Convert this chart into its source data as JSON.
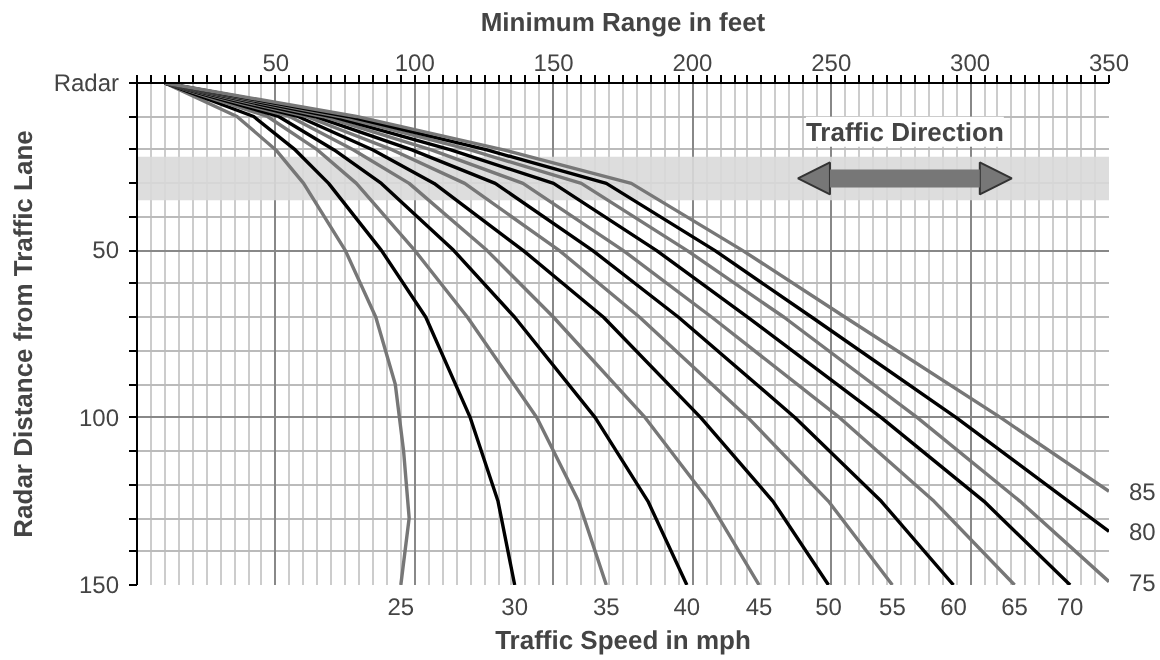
{
  "chart_data": {
    "type": "line",
    "xlabel": "Minimum Range in feet",
    "ylabel": "Radar Distance from Traffic Lane",
    "legend_title": "Traffic Speed in mph",
    "annotations": [
      "Radar"
    ],
    "bands": [
      {
        "axis": "y",
        "from": 22,
        "to": 35,
        "label": "Traffic Direction",
        "color": "#d9d9d9"
      }
    ],
    "xlim": [
      0,
      350
    ],
    "ylim": [
      150,
      0
    ],
    "xticks": [
      {
        "value": 0,
        "label": null
      },
      {
        "value": 5,
        "label": null
      },
      {
        "value": 10,
        "label": null
      },
      {
        "value": 15,
        "label": null
      },
      {
        "value": 20,
        "label": null
      },
      {
        "value": 25,
        "label": null
      },
      {
        "value": 30,
        "label": null
      },
      {
        "value": 35,
        "label": null
      },
      {
        "value": 40,
        "label": null
      },
      {
        "value": 45,
        "label": null
      },
      50,
      {
        "value": 55,
        "label": null
      },
      {
        "value": 60,
        "label": null
      },
      {
        "value": 65,
        "label": null
      },
      {
        "value": 70,
        "label": null
      },
      {
        "value": 75,
        "label": null
      },
      {
        "value": 80,
        "label": null
      },
      {
        "value": 85,
        "label": null
      },
      {
        "value": 90,
        "label": null
      },
      {
        "value": 95,
        "label": null
      },
      100,
      {
        "value": 105,
        "label": null
      },
      {
        "value": 110,
        "label": null
      },
      {
        "value": 115,
        "label": null
      },
      {
        "value": 120,
        "label": null
      },
      {
        "value": 125,
        "label": null
      },
      {
        "value": 130,
        "label": null
      },
      {
        "value": 135,
        "label": null
      },
      {
        "value": 140,
        "label": null
      },
      {
        "value": 145,
        "label": null
      },
      150,
      {
        "value": 155,
        "label": null
      },
      {
        "value": 160,
        "label": null
      },
      {
        "value": 165,
        "label": null
      },
      {
        "value": 170,
        "label": null
      },
      {
        "value": 175,
        "label": null
      },
      {
        "value": 180,
        "label": null
      },
      {
        "value": 185,
        "label": null
      },
      {
        "value": 190,
        "label": null
      },
      {
        "value": 195,
        "label": null
      },
      200,
      {
        "value": 205,
        "label": null
      },
      {
        "value": 210,
        "label": null
      },
      {
        "value": 215,
        "label": null
      },
      {
        "value": 220,
        "label": null
      },
      {
        "value": 225,
        "label": null
      },
      {
        "value": 230,
        "label": null
      },
      {
        "value": 235,
        "label": null
      },
      {
        "value": 240,
        "label": null
      },
      {
        "value": 245,
        "label": null
      },
      250,
      {
        "value": 255,
        "label": null
      },
      {
        "value": 260,
        "label": null
      },
      {
        "value": 265,
        "label": null
      },
      {
        "value": 270,
        "label": null
      },
      {
        "value": 275,
        "label": null
      },
      {
        "value": 280,
        "label": null
      },
      {
        "value": 285,
        "label": null
      },
      {
        "value": 290,
        "label": null
      },
      {
        "value": 295,
        "label": null
      },
      300,
      {
        "value": 305,
        "label": null
      },
      {
        "value": 310,
        "label": null
      },
      {
        "value": 315,
        "label": null
      },
      {
        "value": 320,
        "label": null
      },
      {
        "value": 325,
        "label": null
      },
      {
        "value": 330,
        "label": null
      },
      {
        "value": 335,
        "label": null
      },
      {
        "value": 340,
        "label": null
      },
      {
        "value": 345,
        "label": null
      },
      350
    ],
    "yticks": [
      {
        "value": 0,
        "label": null
      },
      {
        "value": 10,
        "label": null
      },
      {
        "value": 20,
        "label": null
      },
      {
        "value": 30,
        "label": null
      },
      {
        "value": 40,
        "label": null
      },
      50,
      {
        "value": 60,
        "label": null
      },
      {
        "value": 70,
        "label": null
      },
      {
        "value": 80,
        "label": null
      },
      {
        "value": 90,
        "label": null
      },
      100,
      {
        "value": 110,
        "label": null
      },
      {
        "value": 120,
        "label": null
      },
      {
        "value": 130,
        "label": null
      },
      {
        "value": 140,
        "label": null
      },
      150
    ],
    "grid": true,
    "series": [
      {
        "name": "25",
        "color": "#777777",
        "x": [
          10,
          36,
          50,
          60,
          75,
          86,
          93,
          96,
          98,
          95
        ],
        "values": [
          0,
          10,
          20,
          30,
          50,
          70,
          90,
          110,
          130,
          150
        ]
      },
      {
        "name": "30",
        "color": "#000000",
        "x": [
          10,
          42,
          57,
          69,
          88,
          104,
          120,
          130,
          136
        ],
        "values": [
          0,
          10,
          20,
          30,
          50,
          70,
          100,
          125,
          150
        ]
      },
      {
        "name": "35",
        "color": "#777777",
        "x": [
          10,
          47,
          65,
          79,
          100,
          119,
          144,
          159,
          169
        ],
        "values": [
          0,
          10,
          20,
          30,
          50,
          70,
          100,
          125,
          150
        ]
      },
      {
        "name": "40",
        "color": "#000000",
        "x": [
          10,
          51,
          71,
          88,
          114,
          136,
          165,
          184,
          198
        ],
        "values": [
          0,
          10,
          20,
          30,
          50,
          70,
          100,
          125,
          150
        ]
      },
      {
        "name": "45",
        "color": "#777777",
        "x": [
          10,
          55,
          78,
          98,
          126,
          150,
          183,
          206,
          224
        ],
        "values": [
          0,
          10,
          20,
          30,
          50,
          70,
          100,
          125,
          150
        ]
      },
      {
        "name": "50",
        "color": "#000000",
        "x": [
          10,
          58,
          85,
          107,
          139,
          168,
          203,
          229,
          249
        ],
        "values": [
          0,
          10,
          20,
          30,
          50,
          70,
          100,
          125,
          150
        ]
      },
      {
        "name": "55",
        "color": "#777777",
        "x": [
          10,
          61,
          92,
          118,
          152,
          181,
          220,
          249,
          272
        ],
        "values": [
          0,
          10,
          20,
          30,
          50,
          70,
          100,
          125,
          150
        ]
      },
      {
        "name": "60",
        "color": "#000000",
        "x": [
          10,
          64,
          99,
          129,
          164,
          195,
          237,
          268,
          294
        ],
        "values": [
          0,
          10,
          20,
          30,
          50,
          70,
          100,
          125,
          150
        ]
      },
      {
        "name": "65",
        "color": "#777777",
        "x": [
          10,
          67,
          106,
          139,
          175,
          207,
          253,
          287,
          316
        ],
        "values": [
          0,
          10,
          20,
          30,
          50,
          70,
          100,
          125,
          150
        ]
      },
      {
        "name": "70",
        "color": "#000000",
        "x": [
          10,
          70,
          113,
          150,
          187,
          220,
          268,
          305,
          336
        ],
        "values": [
          0,
          10,
          20,
          30,
          50,
          70,
          100,
          125,
          150
        ]
      },
      {
        "name": "75",
        "color": "#777777",
        "x": [
          10,
          73,
          120,
          160,
          198,
          233,
          281,
          318,
          350
        ],
        "values": [
          0,
          10,
          20,
          30,
          50,
          70,
          100,
          125,
          149
        ]
      },
      {
        "name": "80",
        "color": "#000000",
        "x": [
          10,
          76,
          126,
          169,
          208,
          243,
          295,
          350
        ],
        "values": [
          0,
          10,
          20,
          30,
          50,
          70,
          100,
          134
        ]
      },
      {
        "name": "85",
        "color": "#777777",
        "x": [
          10,
          79,
          132,
          178,
          218,
          255,
          311,
          350
        ],
        "values": [
          0,
          10,
          20,
          30,
          50,
          70,
          100,
          122
        ]
      }
    ]
  }
}
